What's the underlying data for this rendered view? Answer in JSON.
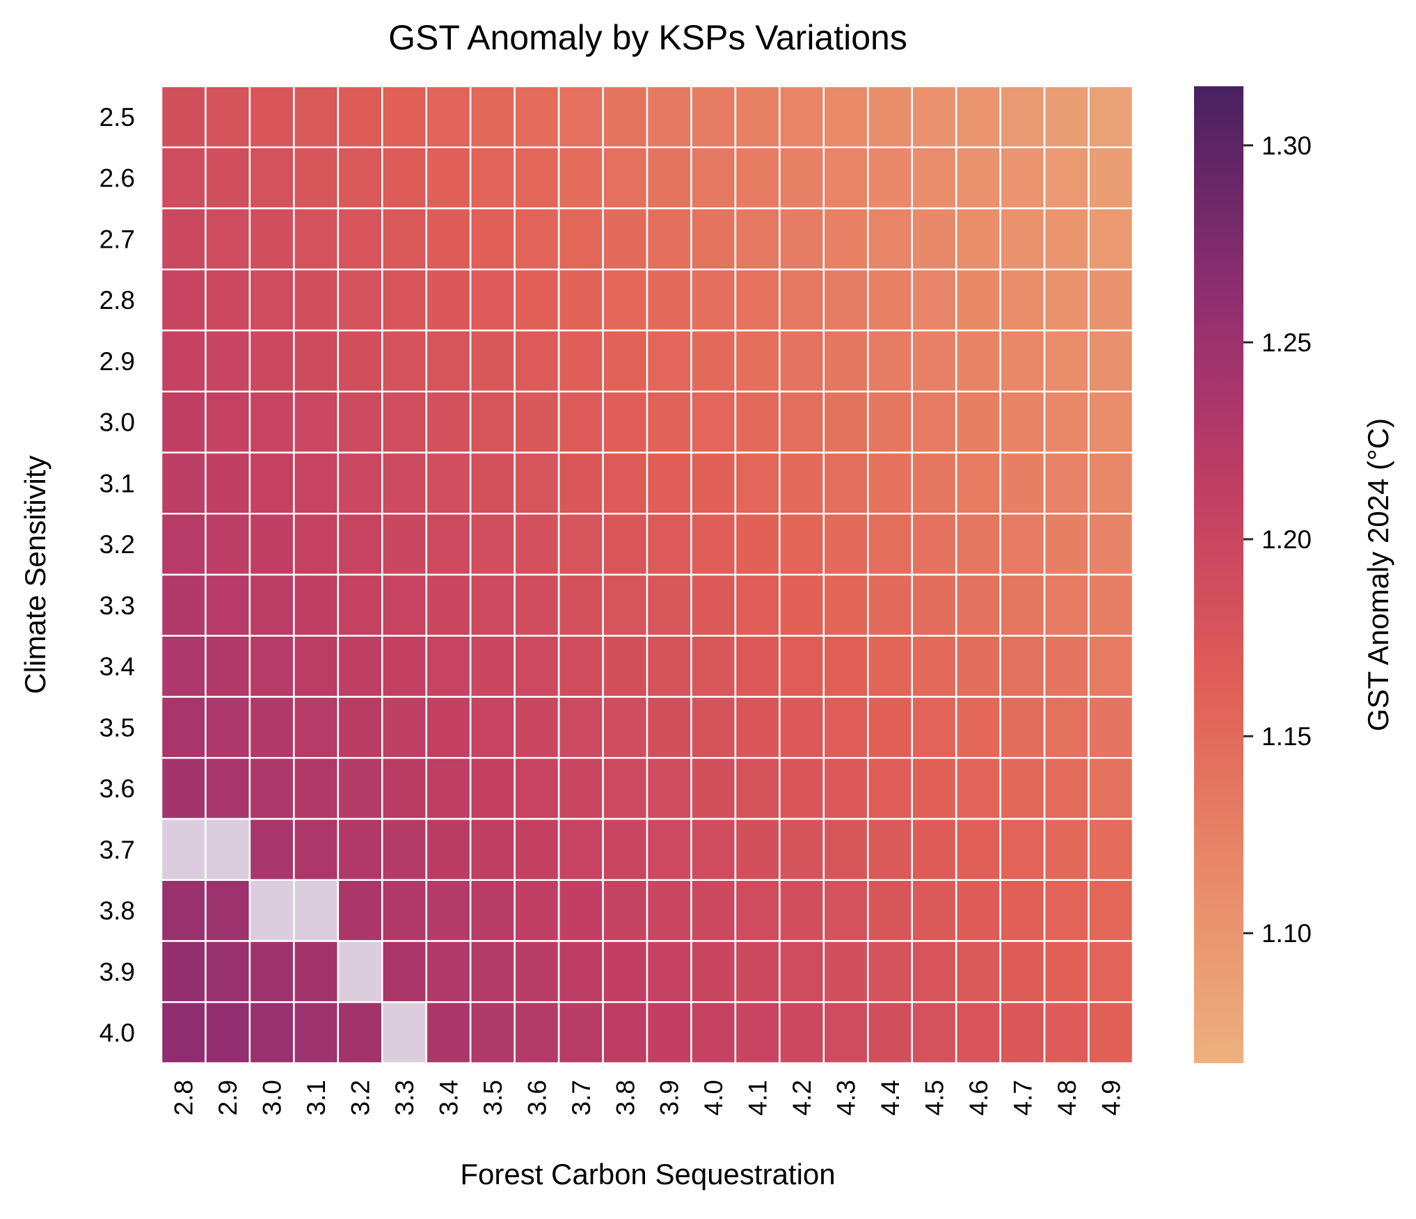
{
  "chart_data": {
    "type": "heatmap",
    "title": "GST Anomaly by KSPs Variations",
    "xlabel": "Forest Carbon Sequestration",
    "ylabel": "Climate Sensitivity",
    "x": [
      "2.8",
      "2.9",
      "3.0",
      "3.1",
      "3.2",
      "3.3",
      "3.4",
      "3.5",
      "3.6",
      "3.7",
      "3.8",
      "3.9",
      "4.0",
      "4.1",
      "4.2",
      "4.3",
      "4.4",
      "4.5",
      "4.6",
      "4.7",
      "4.8",
      "4.9"
    ],
    "y": [
      "2.5",
      "2.6",
      "2.7",
      "2.8",
      "2.9",
      "3.0",
      "3.1",
      "3.2",
      "3.3",
      "3.4",
      "3.5",
      "3.6",
      "3.7",
      "3.8",
      "3.9",
      "4.0"
    ],
    "colorbar": {
      "label": "GST Anomaly 2024 (°C)",
      "ticks": [
        "1.10",
        "1.15",
        "1.20",
        "1.25",
        "1.30"
      ],
      "range": [
        1.067,
        1.315
      ],
      "colormap": "flare"
    },
    "missing_color": "#dbcddd",
    "missing_cells": [
      [
        12,
        0
      ],
      [
        12,
        1
      ],
      [
        13,
        2
      ],
      [
        13,
        3
      ],
      [
        14,
        4
      ],
      [
        15,
        5
      ]
    ],
    "value_model": {
      "description": "estimated cell value",
      "base": 1.186,
      "per_x_step": -0.00478,
      "per_y_step": 0.00518,
      "ref_x": 0,
      "ref_y": 0
    },
    "grid_lines": "white",
    "legend": "colorbar-right"
  },
  "colors": {
    "background": "#ffffff",
    "text": "#262626",
    "cell_border": "#ffffff"
  }
}
